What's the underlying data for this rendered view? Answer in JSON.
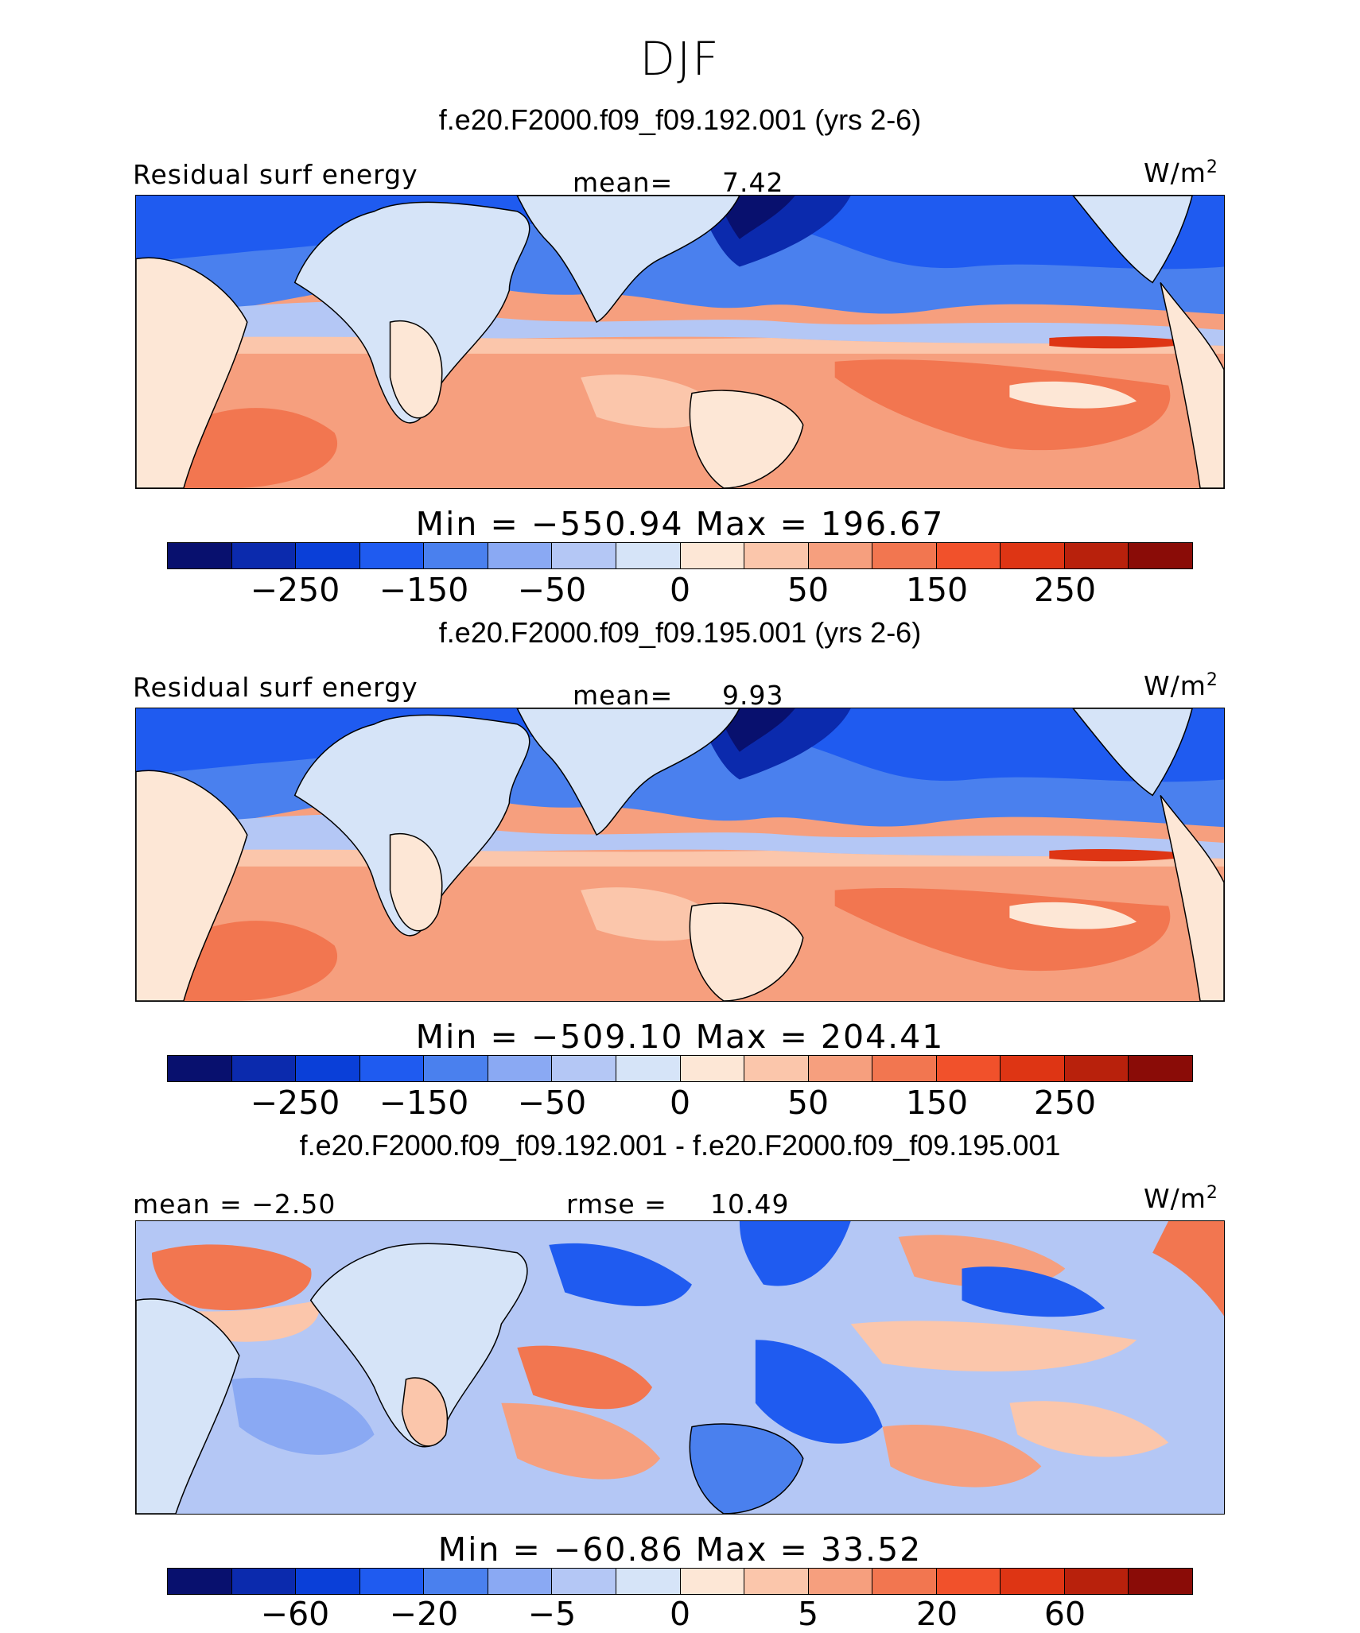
{
  "title": "DJF",
  "colors": [
    "#08106e",
    "#0b2aad",
    "#0a3fd8",
    "#1f5bf0",
    "#4a80ee",
    "#8aa9f3",
    "#b4c7f5",
    "#d6e4f8",
    "#fde7d6",
    "#fbc6ab",
    "#f69f7e",
    "#f27650",
    "#f1512b",
    "#de3514",
    "#b8210c",
    "#8a0c07"
  ],
  "panels": [
    {
      "title": "f.e20.F2000.f09_f09.192.001 (yrs 2-6)",
      "left_label": "Residual surf energy",
      "center_label": "mean=",
      "center_value": "7.42",
      "units_base": "W/m",
      "units_exp": "2",
      "minmax": "Min = −550.94 Max = 196.67",
      "ticks": [
        "−250",
        "−150",
        "−50",
        "0",
        "50",
        "150",
        "250"
      ]
    },
    {
      "title": "f.e20.F2000.f09_f09.195.001 (yrs 2-6)",
      "left_label": "Residual surf energy",
      "center_label": "mean=",
      "center_value": "9.93",
      "units_base": "W/m",
      "units_exp": "2",
      "minmax": "Min = −509.10 Max = 204.41",
      "ticks": [
        "−250",
        "−150",
        "−50",
        "0",
        "50",
        "150",
        "250"
      ]
    },
    {
      "title": "f.e20.F2000.f09_f09.192.001 - f.e20.F2000.f09_f09.195.001",
      "left_label": "mean = −2.50",
      "center_label": "rmse =",
      "center_value": "10.49",
      "units_base": "W/m",
      "units_exp": "2",
      "minmax": "Min = −60.86 Max = 33.52",
      "ticks": [
        "−60",
        "−20",
        "−5",
        "0",
        "5",
        "20",
        "60"
      ]
    }
  ],
  "chart_data": [
    {
      "type": "heatmap",
      "title": "f.e20.F2000.f09_f09.192.001 (yrs 2-6)",
      "variable": "Residual surf energy",
      "units": "W/m2",
      "mean": 7.42,
      "min": -550.94,
      "max": 196.67,
      "colorbar_ticks": [
        -250,
        -150,
        -50,
        0,
        50,
        150,
        250
      ]
    },
    {
      "type": "heatmap",
      "title": "f.e20.F2000.f09_f09.195.001 (yrs 2-6)",
      "variable": "Residual surf energy",
      "units": "W/m2",
      "mean": 9.93,
      "min": -509.1,
      "max": 204.41,
      "colorbar_ticks": [
        -250,
        -150,
        -50,
        0,
        50,
        150,
        250
      ]
    },
    {
      "type": "heatmap",
      "title": "f.e20.F2000.f09_f09.192.001 - f.e20.F2000.f09_f09.195.001",
      "units": "W/m2",
      "mean": -2.5,
      "rmse": 10.49,
      "min": -60.86,
      "max": 33.52,
      "colorbar_ticks": [
        -60,
        -20,
        -5,
        0,
        5,
        20,
        60
      ]
    }
  ]
}
